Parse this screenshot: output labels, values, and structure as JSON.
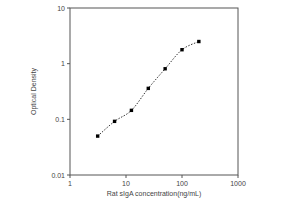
{
  "chart_data": {
    "type": "line",
    "x_label": "Rat sIgA concentration(ng/mL)",
    "y_label": "Optical Density",
    "x": [
      3.12,
      6.25,
      12.5,
      25,
      50,
      100,
      200
    ],
    "series": [
      {
        "name": "sIgA",
        "color": "#000000",
        "values": [
          0.05,
          0.092,
          0.145,
          0.36,
          0.81,
          1.78,
          2.5
        ],
        "marker": "square",
        "line_style": "dotted"
      }
    ],
    "xlim": [
      1,
      1000
    ],
    "xticks": [
      1,
      10,
      100,
      1000
    ],
    "ylim": [
      0.01,
      10
    ],
    "yticks": [
      0.01,
      0.1,
      1,
      10
    ],
    "log": true,
    "grid": false
  }
}
